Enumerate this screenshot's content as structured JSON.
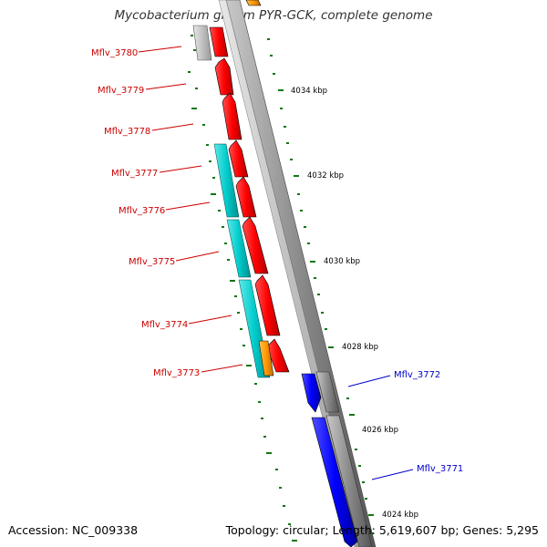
{
  "title": "Mycobacterium gilvum PYR-GCK, complete genome",
  "footer": {
    "accession": "Accession: NC_009338",
    "topology": "Topology: circular; Length: 5,619,607 bp; Genes: 5,295"
  },
  "scale_labels": [
    "4034 kbp",
    "4032 kbp",
    "4030 kbp",
    "4028 kbp",
    "4026 kbp",
    "4024 kbp"
  ],
  "genes_reverse": [
    {
      "name": "Mflv_3780",
      "color": "#cc0000"
    },
    {
      "name": "Mflv_3779",
      "color": "#cc0000"
    },
    {
      "name": "Mflv_3778",
      "color": "#cc0000"
    },
    {
      "name": "Mflv_3777",
      "color": "#cc0000"
    },
    {
      "name": "Mflv_3776",
      "color": "#cc0000"
    },
    {
      "name": "Mflv_3775",
      "color": "#cc0000"
    },
    {
      "name": "Mflv_3774",
      "color": "#cc0000"
    },
    {
      "name": "Mflv_3773",
      "color": "#cc0000"
    }
  ],
  "genes_forward": [
    {
      "name": "Mflv_3772",
      "color": "#0000cc"
    },
    {
      "name": "Mflv_3771",
      "color": "#0000cc"
    }
  ],
  "colors": {
    "gene_red": "#ff0000",
    "gene_blue": "#0000ff",
    "cds_cyan": "#00cccc",
    "cds_orange": "#ff9900",
    "backbone_gray": "#888888",
    "tick_green": "#117711"
  }
}
